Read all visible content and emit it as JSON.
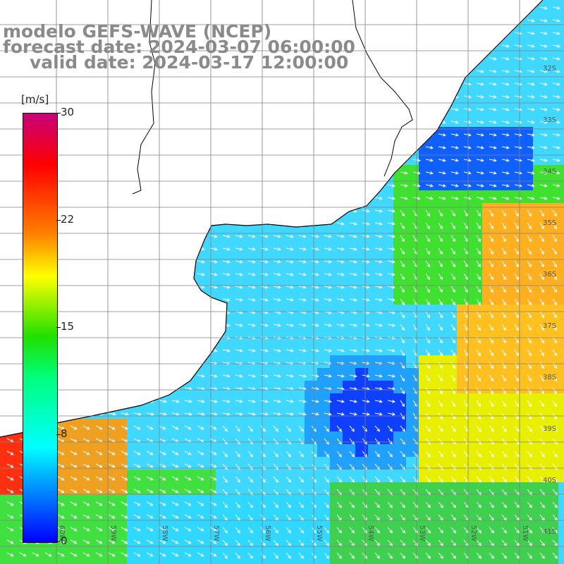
{
  "title": {
    "line1": "modelo GEFS-WAVE (NCEP)",
    "line2": "forecast date: 2024-03-07 06:00:00",
    "line3": "valid date: 2024-03-17 12:00:00"
  },
  "colorbar": {
    "units": "[m/s]",
    "ticks": [
      "30",
      "22",
      "15",
      "8",
      "0"
    ],
    "tick_values": [
      30,
      22,
      15,
      8,
      0
    ]
  },
  "lat_labels": [
    "32S",
    "33S",
    "34S",
    "35S",
    "36S",
    "37S",
    "38S",
    "39S",
    "40S",
    "41S"
  ],
  "lon_labels": [
    "60W",
    "59W",
    "58W",
    "57W",
    "56W",
    "55W",
    "54W",
    "53W",
    "52W",
    "51W"
  ],
  "map": {
    "variable": "wind speed",
    "colors": {
      "land": "#ffffff",
      "grid": "#808080",
      "coast": "#000000",
      "arrows": "#ffffff"
    }
  }
}
